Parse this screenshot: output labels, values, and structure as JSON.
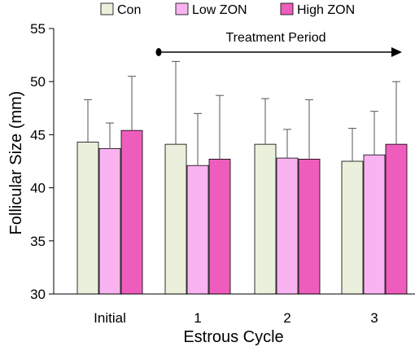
{
  "chart_data": {
    "type": "bar",
    "xlabel": "Estrous Cycle",
    "ylabel": "Follicular Size (mm)",
    "ylim": [
      30,
      55
    ],
    "yticks": [
      30,
      35,
      40,
      45,
      50,
      55
    ],
    "grid": false,
    "legend_position": "top",
    "categories": [
      "Initial",
      "1",
      "2",
      "3"
    ],
    "series": [
      {
        "name": "Con",
        "color": "#ebf0dd",
        "values": [
          44.3,
          44.1,
          44.1,
          42.5
        ],
        "errors": [
          4.0,
          7.8,
          4.3,
          3.1
        ]
      },
      {
        "name": "Low ZON",
        "color": "#f9b3f0",
        "values": [
          43.7,
          42.1,
          42.8,
          43.1
        ],
        "errors": [
          2.4,
          4.9,
          2.7,
          4.1
        ]
      },
      {
        "name": "High ZON",
        "color": "#ee5dbc",
        "values": [
          45.4,
          42.7,
          42.7,
          44.1
        ],
        "errors": [
          5.1,
          6.0,
          5.6,
          5.9
        ]
      }
    ],
    "annotations": [
      {
        "text": "Treatment Period",
        "type": "arrow",
        "from_category": "1",
        "to_category": "3"
      }
    ]
  }
}
